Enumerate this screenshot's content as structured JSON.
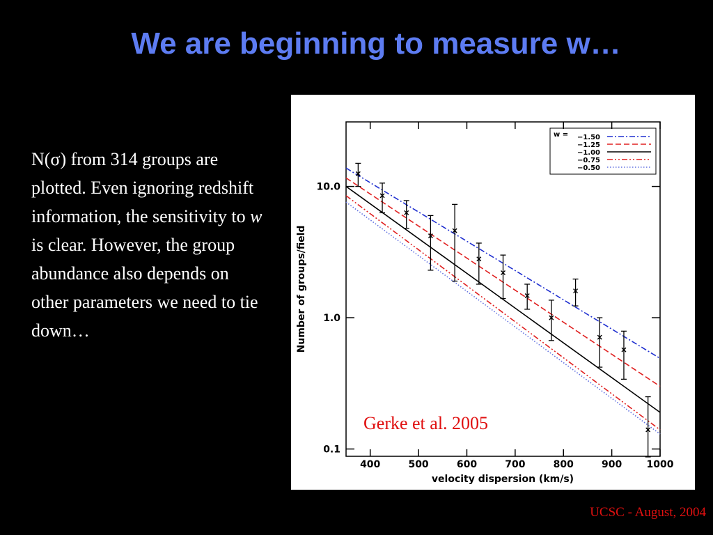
{
  "slide": {
    "title": "We are beginning to measure w…",
    "body": [
      "N(σ) from 314 groups are plotted. Even ignoring redshift information, the sensitivity to ",
      "w",
      " is clear. However, the group abundance also depends on other parameters we need to tie down…"
    ],
    "footer": "UCSC - August, 2004"
  },
  "chart_data": {
    "type": "errorbar-line",
    "xlabel": "velocity dispersion (km/s)",
    "ylabel": "Number of groups/field",
    "annotation": "Gerke et al. 2005",
    "legend_title": "w =",
    "legend": "upper right",
    "log_y": true,
    "xlim": [
      350,
      1000
    ],
    "xticks": [
      400,
      500,
      600,
      700,
      800,
      900,
      1000
    ],
    "ylim": [
      0.088,
      31
    ],
    "yticks": [
      {
        "value": 10,
        "label": "10.0"
      },
      {
        "value": 1,
        "label": "1.0"
      },
      0.1
    ],
    "points": {
      "color": "#000000",
      "x": [
        375,
        425,
        475,
        525,
        575,
        625,
        675,
        725,
        775,
        825,
        875,
        925,
        975
      ],
      "values": [
        12.5,
        8.5,
        6.3,
        4.2,
        4.6,
        2.8,
        2.2,
        1.47,
        1.0,
        1.6,
        0.71,
        0.57,
        0.14
      ],
      "upper": [
        15,
        10.6,
        7.8,
        6,
        7.3,
        3.7,
        3.0,
        1.8,
        1.36,
        1.97,
        1.0,
        0.79,
        0.25
      ],
      "lower": [
        10,
        6.3,
        4.8,
        2.3,
        1.9,
        1.8,
        1.4,
        1.16,
        0.67,
        1.23,
        0.42,
        0.34,
        0.087
      ]
    },
    "series": [
      {
        "name": "−1.50",
        "color": "#2030d0",
        "style": "dashdot",
        "x": [
          350,
          1000
        ],
        "values": [
          13.8,
          0.49
        ]
      },
      {
        "name": "−1.25",
        "color": "#e02020",
        "style": "dashed",
        "x": [
          350,
          1000
        ],
        "values": [
          11.6,
          0.3
        ]
      },
      {
        "name": "−1.00",
        "color": "#000000",
        "style": "solid",
        "x": [
          350,
          1000
        ],
        "values": [
          10,
          0.19
        ]
      },
      {
        "name": "−0.75",
        "color": "#e02020",
        "style": "dashdotdot",
        "x": [
          350,
          1000
        ],
        "values": [
          8.5,
          0.14
        ]
      },
      {
        "name": "−0.50",
        "color": "#6070e0",
        "style": "dotted",
        "x": [
          350,
          1000
        ],
        "values": [
          7.6,
          0.13
        ]
      }
    ]
  }
}
